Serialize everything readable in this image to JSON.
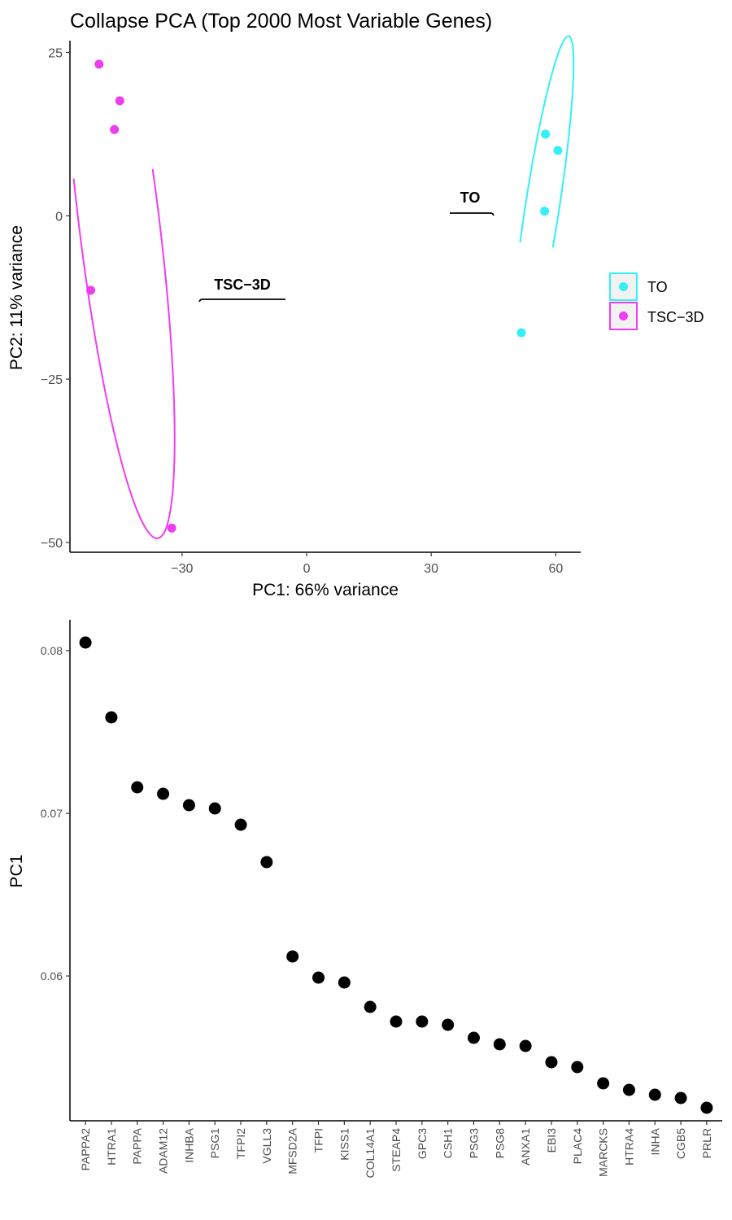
{
  "colors": {
    "TO": "#33F0F5",
    "TSC-3D": "#F03CF0",
    "points": "#000000"
  },
  "chart_data": [
    {
      "type": "scatter",
      "title": "Collapse PCA (Top 2000 Most Variable Genes)",
      "xlabel": "PC1: 66% variance",
      "ylabel": "PC2: 11% variance",
      "xlim": [
        -57,
        66
      ],
      "ylim": [
        -51.5,
        26.8
      ],
      "xticks": [
        -30,
        0,
        30,
        60
      ],
      "xtick_labels": [
        "−30",
        "0",
        "30",
        "60"
      ],
      "yticks": [
        25,
        0,
        -25,
        -50
      ],
      "ytick_labels": [
        "25",
        "0",
        "−25",
        "−50"
      ],
      "grid": false,
      "legend_position": "right",
      "series": [
        {
          "name": "TO",
          "label": "TO",
          "color": "#33F0F5",
          "points": [
            [
              57.5,
              12.5
            ],
            [
              60.5,
              10
            ],
            [
              57.3,
              0.7
            ],
            [
              51.7,
              -17.9
            ]
          ]
        },
        {
          "name": "TSC-3D",
          "label": "TSC−3D",
          "color": "#F03CF0",
          "points": [
            [
              -50,
              23.2
            ],
            [
              -45,
              17.6
            ],
            [
              -46.3,
              13.2
            ],
            [
              -52,
              -11.4
            ],
            [
              -32.5,
              -47.8
            ]
          ]
        }
      ],
      "legend": [
        "TO",
        "TSC−3D"
      ]
    },
    {
      "type": "scatter",
      "title": "",
      "xlabel": "",
      "ylabel": "PC1",
      "ylim": [
        0.0511,
        0.0819
      ],
      "yticks": [
        0.08,
        0.07,
        0.06
      ],
      "ytick_labels": [
        "0.08",
        "0.07",
        "0.06"
      ],
      "grid": false,
      "categories": [
        "PAPPA2",
        "HTRA1",
        "PAPPA",
        "ADAM12",
        "INHBA",
        "PSG1",
        "TFPI2",
        "VGLL3",
        "MFSD2A",
        "TFPI",
        "KISS1",
        "COL14A1",
        "STEAP4",
        "GPC3",
        "CSH1",
        "PSG3",
        "PSG8",
        "ANXA1",
        "EBI3",
        "PLAC4",
        "MARCKS",
        "HTRA4",
        "INHA",
        "CGB5",
        "PRLR"
      ],
      "values": [
        0.0805,
        0.0759,
        0.0716,
        0.0712,
        0.0705,
        0.0703,
        0.0693,
        0.067,
        0.0612,
        0.0599,
        0.0596,
        0.0581,
        0.0572,
        0.0572,
        0.057,
        0.0562,
        0.0558,
        0.0557,
        0.0547,
        0.0544,
        0.0534,
        0.053,
        0.0527,
        0.0525,
        0.0519
      ]
    }
  ]
}
